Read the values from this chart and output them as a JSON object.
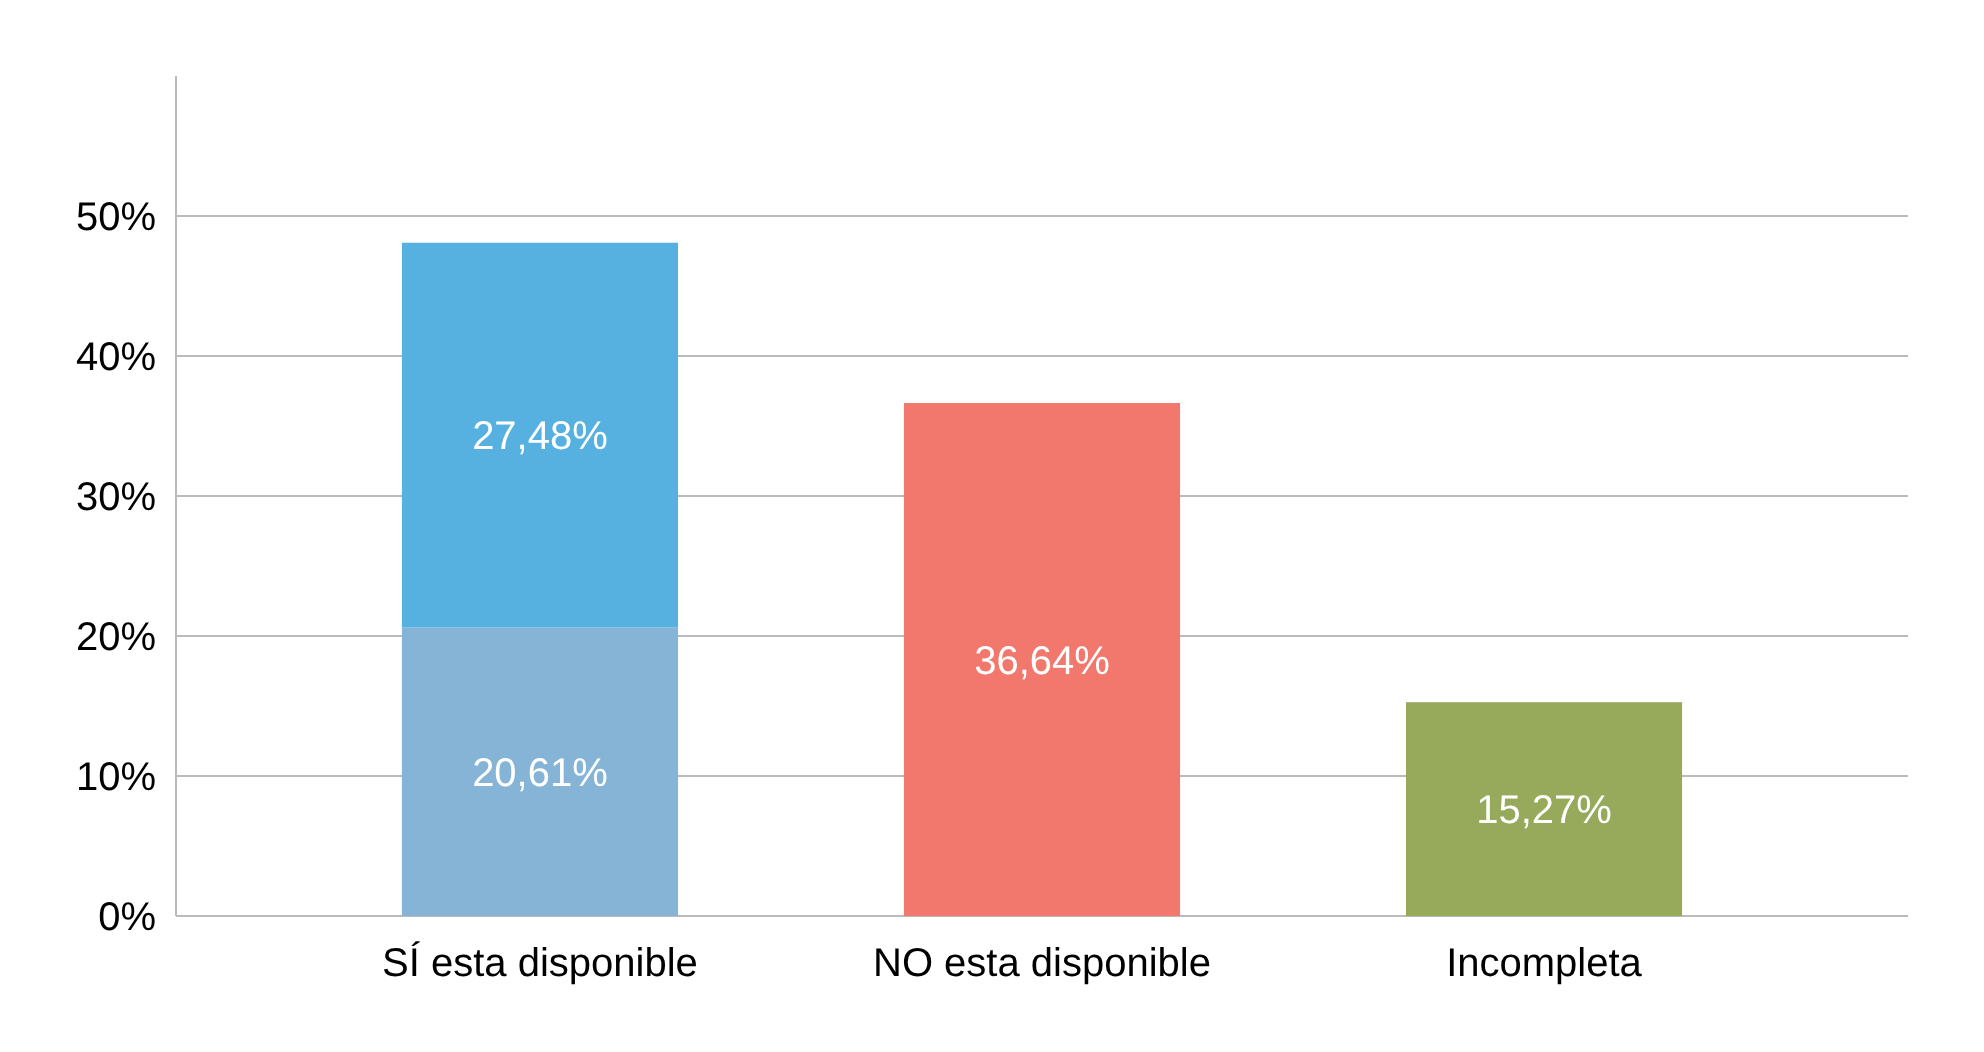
{
  "chart_data": {
    "type": "bar",
    "stacked": true,
    "categories": [
      "SÍ esta disponible",
      "NO esta disponible",
      "Incompleta"
    ],
    "series": [
      {
        "colors": [
          "#85b4d6",
          "#f2776c",
          "#97a95a"
        ],
        "values": [
          20.61,
          36.64,
          15.27
        ],
        "value_labels": [
          "20,61%",
          "36,64%",
          "15,27%"
        ]
      },
      {
        "colors": [
          "#56b1e0",
          null,
          null
        ],
        "values": [
          27.48,
          null,
          null
        ],
        "value_labels": [
          "27,48%",
          null,
          null
        ]
      }
    ],
    "ylim": [
      0,
      60
    ],
    "yticks": [
      {
        "value": 0,
        "label": "0%"
      },
      {
        "value": 10,
        "label": "10%"
      },
      {
        "value": 20,
        "label": "20%"
      },
      {
        "value": 30,
        "label": "30%"
      },
      {
        "value": 40,
        "label": "40%"
      },
      {
        "value": 50,
        "label": "50%"
      }
    ],
    "grid": "y"
  }
}
